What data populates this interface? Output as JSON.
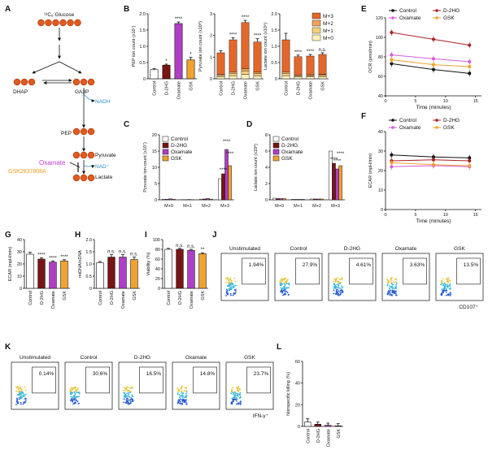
{
  "colors": {
    "control": "#ffffff",
    "d2hg": "#7a1414",
    "oxamate": "#b13ec6",
    "gsk": "#f2a22e",
    "pathway_node": "#e05a1e",
    "nadh": "#2d8fd4",
    "oxamate_text": "#c23bd1",
    "gsk_text": "#f29a1c",
    "iso_m3": "#e3672a",
    "iso_m2": "#f2a15c",
    "iso_m1": "#f4d07a",
    "iso_m0": "#fbf2b8",
    "ecar_control": "#111111",
    "ecar_d2hg": "#a82222",
    "ecar_oxamate": "#d65bdc",
    "ecar_gsk": "#f2a22e"
  },
  "panel_labels": [
    "A",
    "B",
    "C",
    "D",
    "E",
    "F",
    "G",
    "H",
    "I",
    "J",
    "K",
    "L"
  ],
  "pathway": {
    "glucose": "¹³C₆ Glucose",
    "dhap": "DHAP",
    "ga3p": "GA3P",
    "nadh": "NADH",
    "pep": "PEP",
    "pyruvate": "Pyruvate",
    "oxamate": "Oxamate",
    "gsk": "GSK2837808A",
    "nad": "NAD⁺",
    "lactate": "Lactate"
  },
  "conditions": [
    "Control",
    "D-2HG",
    "Oxamate",
    "GSK"
  ],
  "legend_iso": [
    "M+3",
    "M+2",
    "M+1",
    "M+0"
  ],
  "legend_cond": [
    "Control",
    "D-2HG",
    "Oxamate",
    "GSK"
  ],
  "flow": {
    "markers": [
      "CD107⁺",
      "IFN-γ⁺"
    ],
    "j_titles": [
      "Unstimulated",
      "Control",
      "D-2HG",
      "Oxamate",
      "GSK"
    ],
    "j_pct": [
      "1.94%",
      "27.9%",
      "4.61%",
      "3.63%",
      "13.5%"
    ],
    "k_titles": [
      "Unstimulated",
      "Control",
      "D-2HG",
      "Oxamate",
      "GSK"
    ],
    "k_pct": [
      "0.14%",
      "30.6%",
      "16.5%",
      "14.8%",
      "23.7%"
    ]
  },
  "chart_data": [
    {
      "panel": "B1",
      "type": "bar",
      "categories": [
        "Control",
        "D-2HG",
        "Oxamate",
        "GSK"
      ],
      "values": [
        0.28,
        0.42,
        1.7,
        0.58
      ],
      "errors": [
        0.03,
        0.03,
        0.05,
        0.08
      ],
      "ylabel": "PEP ion count (x10⁷)",
      "ylim": [
        0,
        2
      ],
      "yticks": [
        "0",
        "0.5",
        "1.0",
        "1.5",
        "2.0"
      ],
      "sig": [
        "",
        "*",
        "****",
        "*"
      ]
    },
    {
      "panel": "B2",
      "type": "bar",
      "categories": [
        "Control",
        "D-2HG",
        "Oxamate",
        "GSK"
      ],
      "values": [
        1.2,
        1.8,
        2.6,
        1.7
      ],
      "errors": [
        0.1,
        0.1,
        0.1,
        0.15
      ],
      "ylabel": "Pyruvate ion count (x10⁸)",
      "ylim": [
        0,
        3
      ],
      "yticks": [
        "0",
        "1",
        "2",
        "3"
      ],
      "sig": [
        "",
        "****",
        "****",
        "****"
      ]
    },
    {
      "panel": "B3",
      "type": "bar",
      "categories": [
        "Control",
        "D-2HG",
        "Oxamate",
        "GSK"
      ],
      "values": [
        1.2,
        0.68,
        0.7,
        0.75
      ],
      "errors": [
        0.2,
        0.05,
        0.05,
        0.05
      ],
      "ylabel": "Lactate ion count (x10⁹)",
      "ylim": [
        0,
        2
      ],
      "yticks": [
        "0",
        "0.5",
        "1.0",
        "1.5",
        "2.0"
      ],
      "sig": [
        "",
        "****",
        "****",
        "n.s."
      ]
    },
    {
      "panel": "C",
      "type": "bar",
      "categories": [
        "M+0",
        "M+1",
        "M+2",
        "M+3"
      ],
      "series": [
        {
          "name": "Control",
          "values": [
            0.2,
            0.05,
            0.2,
            6.5
          ]
        },
        {
          "name": "D-2HG",
          "values": [
            0.15,
            0.05,
            0.25,
            8.0
          ]
        },
        {
          "name": "Oxamate",
          "values": [
            0.3,
            0.1,
            0.4,
            15.5
          ]
        },
        {
          "name": "GSK",
          "values": [
            0.15,
            0.05,
            0.2,
            10.5
          ]
        }
      ],
      "ylabel": "Pyruvate ion count (x10⁷)",
      "ylim": [
        0,
        20
      ],
      "sig": [
        "****",
        "****",
        "****"
      ]
    },
    {
      "panel": "D",
      "type": "bar",
      "categories": [
        "M+0",
        "M+1",
        "M+2",
        "M+3"
      ],
      "series": [
        {
          "name": "Control",
          "values": [
            0.2,
            0.05,
            0.1,
            6.0
          ]
        },
        {
          "name": "D-2HG",
          "values": [
            0.15,
            0.05,
            0.1,
            4.5
          ]
        },
        {
          "name": "Oxamate",
          "values": [
            0.15,
            0.05,
            0.1,
            3.8
          ]
        },
        {
          "name": "GSK",
          "values": [
            0.15,
            0.05,
            0.1,
            4.2
          ]
        }
      ],
      "ylabel": "Lactate ion count (x10⁸)",
      "ylim": [
        0,
        8
      ],
      "sig": [
        "****",
        "****",
        "****"
      ]
    },
    {
      "panel": "E",
      "type": "line",
      "x": [
        1,
        8,
        14
      ],
      "series": [
        {
          "name": "Control",
          "values": [
            73,
            67,
            63
          ]
        },
        {
          "name": "D-2HG",
          "values": [
            105,
            98,
            92
          ]
        },
        {
          "name": "Oxamate",
          "values": [
            82,
            78,
            75
          ]
        },
        {
          "name": "GSK",
          "values": [
            77,
            72,
            70
          ]
        }
      ],
      "xlabel": "Time (minutes)",
      "ylabel": "OCR (pmol/min)",
      "ylim": [
        40,
        120
      ],
      "xlim": [
        0,
        16
      ],
      "yticks": [
        "40",
        "60",
        "80",
        "100",
        "120"
      ],
      "xticks": [
        "0",
        "5",
        "10",
        "15"
      ]
    },
    {
      "panel": "F",
      "type": "line",
      "x": [
        1,
        8,
        14
      ],
      "series": [
        {
          "name": "Control",
          "values": [
            28,
            27,
            26.5
          ]
        },
        {
          "name": "D-2HG",
          "values": [
            25,
            25.5,
            25
          ]
        },
        {
          "name": "Oxamate",
          "values": [
            22,
            22.5,
            22
          ]
        },
        {
          "name": "GSK",
          "values": [
            24,
            23,
            22.5
          ]
        }
      ],
      "xlabel": "Time (minutes)",
      "ylabel": "ECAR (mpH/min)",
      "ylim": [
        0,
        40
      ],
      "xlim": [
        0,
        16
      ],
      "yticks": [
        "0",
        "10",
        "20",
        "30",
        "40"
      ],
      "xticks": [
        "0",
        "5",
        "10",
        "15"
      ]
    },
    {
      "panel": "G",
      "type": "bar",
      "categories": [
        "Control",
        "D-2HG",
        "Oxamate",
        "GSK"
      ],
      "values": [
        28,
        24,
        21.5,
        22.5
      ],
      "errors": [
        1.5,
        1,
        1,
        1
      ],
      "ylabel": "ECAR (mpH/min)",
      "ylim": [
        0,
        40
      ],
      "yticks": [
        "0",
        "10",
        "20",
        "30",
        "40"
      ],
      "sig": [
        "",
        "****",
        "****",
        "****"
      ]
    },
    {
      "panel": "H",
      "type": "bar",
      "categories": [
        "Control",
        "D-2HG",
        "Oxamate",
        "GSK"
      ],
      "values": [
        1.05,
        1.28,
        1.28,
        1.18
      ],
      "errors": [
        0.05,
        0.1,
        0.1,
        0.1
      ],
      "ylabel": "mtDNA/nDNA",
      "ylim": [
        0,
        2
      ],
      "yticks": [
        "0",
        "0.5",
        "1.0",
        "1.5",
        "2.0"
      ],
      "sig": [
        "",
        "n.s.",
        "n.s.",
        "n.s."
      ]
    },
    {
      "panel": "I",
      "type": "bar",
      "categories": [
        "Control",
        "D-2HG",
        "Oxamate",
        "GSK"
      ],
      "values": [
        80,
        80,
        78,
        71
      ],
      "errors": [
        2,
        2,
        2,
        2
      ],
      "ylabel": "Viability (%)",
      "ylim": [
        0,
        100
      ],
      "yticks": [
        "0",
        "20",
        "40",
        "60",
        "80",
        "100"
      ],
      "sig": [
        "",
        "n.s.",
        "n.s.",
        "**"
      ]
    },
    {
      "panel": "L",
      "type": "bar",
      "categories": [
        "Control",
        "D-2HG",
        "Oxamate",
        "GSK"
      ],
      "values": [
        4,
        2,
        1,
        0.5
      ],
      "errors": [
        3,
        2,
        2,
        2
      ],
      "ylabel": "Nonspecific killing (%)",
      "ylim": [
        0,
        60
      ],
      "yticks": [
        "0",
        "20",
        "40",
        "60"
      ]
    }
  ]
}
